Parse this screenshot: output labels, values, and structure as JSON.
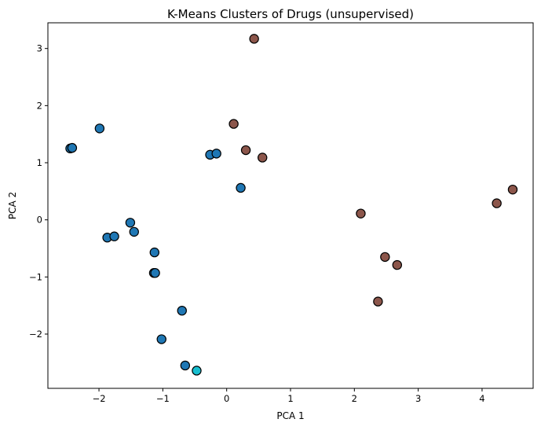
{
  "chart_data": {
    "type": "scatter",
    "title": "K-Means Clusters of Drugs (unsupervised)",
    "xlabel": "PCA 1",
    "ylabel": "PCA 2",
    "xlim": [
      -2.8,
      4.8
    ],
    "ylim": [
      -2.95,
      3.45
    ],
    "xticks": [
      -2,
      -1,
      0,
      1,
      2,
      3,
      4
    ],
    "yticks": [
      -2,
      -1,
      0,
      1,
      2,
      3
    ],
    "xtick_labels": [
      "−2",
      "−1",
      "0",
      "1",
      "2",
      "3",
      "4"
    ],
    "ytick_labels": [
      "−2",
      "−1",
      "0",
      "1",
      "2",
      "3"
    ],
    "grid": false,
    "legend": "none",
    "series": [
      {
        "color": "#1f77b4",
        "points": [
          {
            "x": -2.45,
            "y": 1.25
          },
          {
            "x": -2.42,
            "y": 1.26
          },
          {
            "x": -1.99,
            "y": 1.6
          },
          {
            "x": -0.26,
            "y": 1.14
          },
          {
            "x": -0.16,
            "y": 1.16
          },
          {
            "x": 0.22,
            "y": 0.56
          },
          {
            "x": -1.51,
            "y": -0.05
          },
          {
            "x": -1.45,
            "y": -0.21
          },
          {
            "x": -1.87,
            "y": -0.31
          },
          {
            "x": -1.76,
            "y": -0.29
          },
          {
            "x": -1.13,
            "y": -0.57
          },
          {
            "x": -1.14,
            "y": -0.93
          },
          {
            "x": -1.12,
            "y": -0.93
          },
          {
            "x": -0.7,
            "y": -1.59
          },
          {
            "x": -1.02,
            "y": -2.09
          },
          {
            "x": -0.65,
            "y": -2.55
          }
        ]
      },
      {
        "color": "#8c564b",
        "points": [
          {
            "x": 0.43,
            "y": 3.17
          },
          {
            "x": 0.11,
            "y": 1.68
          },
          {
            "x": 0.3,
            "y": 1.22
          },
          {
            "x": 0.56,
            "y": 1.09
          },
          {
            "x": 2.1,
            "y": 0.11
          },
          {
            "x": 4.23,
            "y": 0.29
          },
          {
            "x": 4.48,
            "y": 0.53
          },
          {
            "x": 2.48,
            "y": -0.65
          },
          {
            "x": 2.67,
            "y": -0.79
          },
          {
            "x": 2.37,
            "y": -1.43
          }
        ]
      },
      {
        "color": "#17becf",
        "points": [
          {
            "x": -0.47,
            "y": -2.64
          }
        ]
      }
    ]
  }
}
